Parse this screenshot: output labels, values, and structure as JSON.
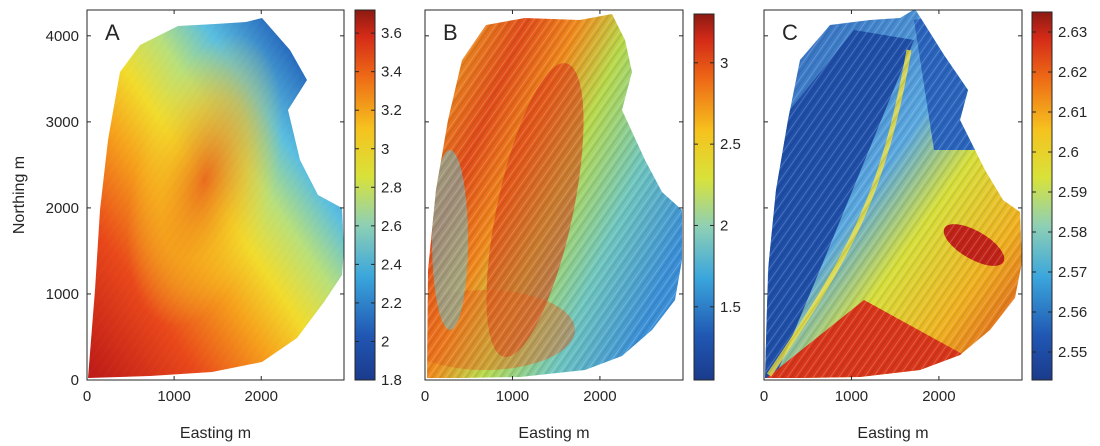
{
  "figure": {
    "ylabel": "Northing m"
  },
  "chart_data": [
    {
      "type": "heatmap",
      "panel_label": "A",
      "xlabel": "Easting m",
      "ylabel": "Northing m",
      "xlim": [
        0,
        2950
      ],
      "ylim": [
        0,
        4300
      ],
      "xticks": [
        "0",
        "1000",
        "2000"
      ],
      "yticks": [
        "0",
        "1000",
        "2000",
        "3000",
        "4000"
      ],
      "colorbar": {
        "min": 1.8,
        "max": 3.72,
        "ticks": [
          "1.8",
          "2",
          "2.2",
          "2.4",
          "2.6",
          "2.8",
          "3",
          "3.2",
          "3.4",
          "3.6"
        ]
      }
    },
    {
      "type": "heatmap",
      "panel_label": "B",
      "xlabel": "Easting m",
      "xlim": [
        0,
        2950
      ],
      "ylim": [
        0,
        4300
      ],
      "xticks": [
        "0",
        "1000",
        "2000"
      ],
      "colorbar": {
        "min": 1.05,
        "max": 3.3,
        "ticks": [
          "1.5",
          "2",
          "2.5",
          "3"
        ]
      }
    },
    {
      "type": "heatmap",
      "panel_label": "C",
      "xlabel": "Easting m",
      "xlim": [
        0,
        2950
      ],
      "ylim": [
        0,
        4300
      ],
      "xticks": [
        "0",
        "1000",
        "2000"
      ],
      "colorbar": {
        "min": 2.543,
        "max": 2.635,
        "ticks": [
          "2.55",
          "2.56",
          "2.57",
          "2.58",
          "2.59",
          "2.6",
          "2.61",
          "2.62",
          "2.63"
        ]
      }
    }
  ]
}
